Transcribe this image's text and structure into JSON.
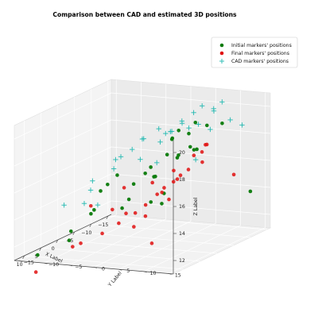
{
  "chart_data": {
    "type": "scatter",
    "projection": "3d",
    "title": "Comparison between CAD and estimated 3D positions",
    "xlabel": "X Label",
    "ylabel": "Y Label",
    "zlabel": "Z Label",
    "xlim": [
      -16,
      13
    ],
    "ylim": [
      -16,
      16
    ],
    "zlim": [
      11,
      21
    ],
    "xticks": [
      -15,
      -10,
      -5,
      0,
      5,
      10
    ],
    "yticks": [
      -15,
      -10,
      -5,
      0,
      5,
      10,
      15
    ],
    "zticks": [
      12,
      14,
      16,
      18,
      20
    ],
    "xtick_labels": [
      "−15",
      "−10",
      "−5",
      "0",
      "5",
      "10"
    ],
    "ytick_labels": [
      "−15",
      "−10",
      "−5",
      "0",
      "5",
      "10",
      "15"
    ],
    "ztick_labels": [
      "12",
      "14",
      "16",
      "18",
      "20"
    ],
    "grid": true,
    "legend_position": "top-right",
    "series": [
      {
        "name": "Initial markers' positions",
        "marker": "circle",
        "color": "#0a7a0a",
        "points": [
          [
            -13,
            14,
            14
          ],
          [
            -12,
            9,
            19
          ],
          [
            -11,
            4,
            17
          ],
          [
            -9,
            1,
            18
          ],
          [
            -7,
            -2,
            16
          ],
          [
            -8,
            0,
            14
          ],
          [
            -6,
            4,
            17
          ],
          [
            -5,
            7,
            19
          ],
          [
            -4,
            9,
            20
          ],
          [
            -3,
            12,
            20
          ],
          [
            -2,
            2,
            16
          ],
          [
            0,
            6,
            18
          ],
          [
            1,
            9,
            20
          ],
          [
            2,
            12,
            19
          ],
          [
            3,
            14,
            19
          ],
          [
            4,
            1,
            15
          ],
          [
            5,
            7,
            17
          ],
          [
            6,
            11,
            20
          ],
          [
            7,
            13,
            19
          ],
          [
            8,
            -2,
            16
          ],
          [
            9,
            3,
            15
          ],
          [
            10,
            6,
            17
          ],
          [
            11,
            9,
            18
          ],
          [
            12,
            13,
            16
          ],
          [
            -1,
            -10,
            13
          ],
          [
            2,
            -12,
            12
          ],
          [
            7,
            -9,
            12
          ],
          [
            9,
            -14,
            11
          ],
          [
            -10,
            -4,
            13
          ],
          [
            4,
            -6,
            14
          ],
          [
            -3,
            -8,
            15
          ],
          [
            6,
            0,
            17
          ]
        ]
      },
      {
        "name": "Final markers' positions",
        "marker": "circle",
        "color": "#e01010",
        "points": [
          [
            -14,
            10,
            15
          ],
          [
            -12,
            5,
            16
          ],
          [
            -11,
            -2,
            14
          ],
          [
            -9,
            2,
            15
          ],
          [
            -8,
            6,
            17
          ],
          [
            -7,
            9,
            18
          ],
          [
            -6,
            -1,
            15
          ],
          [
            -5,
            3,
            14
          ],
          [
            -4,
            6,
            16
          ],
          [
            -3,
            11,
            18
          ],
          [
            -2,
            -4,
            15
          ],
          [
            -1,
            1,
            14
          ],
          [
            0,
            4,
            15
          ],
          [
            1,
            8,
            17
          ],
          [
            2,
            -8,
            14
          ],
          [
            3,
            -3,
            14
          ],
          [
            4,
            2,
            13
          ],
          [
            5,
            5,
            14
          ],
          [
            6,
            9,
            16
          ],
          [
            7,
            12,
            17
          ],
          [
            8,
            -6,
            12
          ],
          [
            9,
            -1,
            13
          ],
          [
            10,
            3,
            14
          ],
          [
            11,
            7,
            15
          ],
          [
            12,
            11,
            13
          ],
          [
            -10,
            -9,
            12
          ],
          [
            3,
            -11,
            11
          ],
          [
            11,
            -13,
            10
          ],
          [
            7,
            15,
            18
          ],
          [
            0,
            14,
            19
          ]
        ]
      },
      {
        "name": "CAD markers' positions",
        "marker": "plus",
        "color": "#20b8b0",
        "points": [
          [
            -12,
            13,
            19
          ],
          [
            -11,
            8,
            20
          ],
          [
            -9,
            11,
            21
          ],
          [
            -8,
            5,
            19
          ],
          [
            -7,
            14,
            20
          ],
          [
            -6,
            9,
            21
          ],
          [
            -5,
            12,
            21
          ],
          [
            -4,
            3,
            19
          ],
          [
            -3,
            7,
            20
          ],
          [
            -2,
            10,
            21
          ],
          [
            -1,
            14,
            20
          ],
          [
            0,
            1,
            19
          ],
          [
            1,
            5,
            20
          ],
          [
            2,
            8,
            20
          ],
          [
            3,
            11,
            21
          ],
          [
            4,
            15,
            21
          ],
          [
            5,
            -1,
            18
          ],
          [
            6,
            3,
            19
          ],
          [
            7,
            6,
            20
          ],
          [
            8,
            10,
            20
          ],
          [
            9,
            13,
            21
          ],
          [
            10,
            2,
            18
          ],
          [
            11,
            8,
            19
          ],
          [
            12,
            12,
            19
          ],
          [
            -13,
            3,
            16
          ],
          [
            -4,
            -6,
            17
          ],
          [
            3,
            -7,
            16
          ],
          [
            8,
            -4,
            16
          ],
          [
            1,
            -10,
            14
          ],
          [
            -6,
            -12,
            13
          ],
          [
            10,
            -8,
            15
          ]
        ]
      }
    ]
  }
}
